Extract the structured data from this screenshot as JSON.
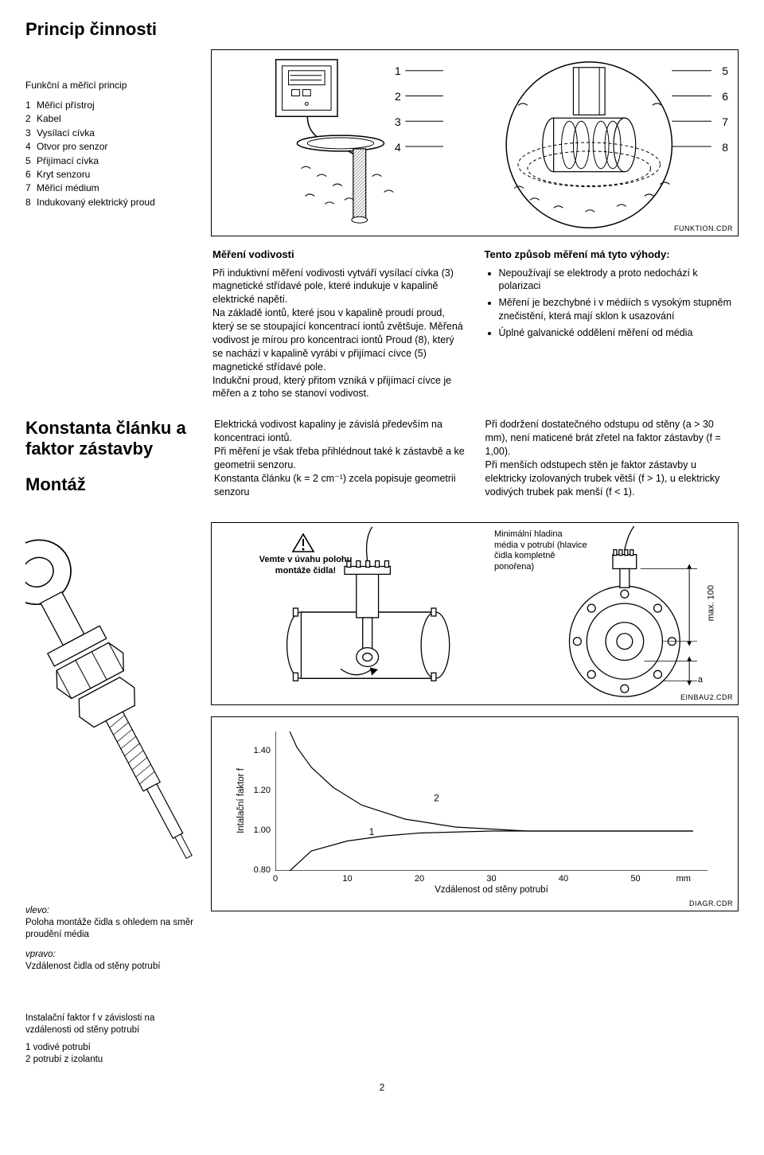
{
  "section1": {
    "title": "Princip činnosti"
  },
  "legend": {
    "subtitle": "Funkční a měřicí princip",
    "items": [
      {
        "n": "1",
        "t": "Měřicí přístroj"
      },
      {
        "n": "2",
        "t": "Kabel"
      },
      {
        "n": "3",
        "t": "Vysílací cívka"
      },
      {
        "n": "4",
        "t": "Otvor pro senzor"
      },
      {
        "n": "5",
        "t": "Přijímací cívka"
      },
      {
        "n": "6",
        "t": "Kryt senzoru"
      },
      {
        "n": "7",
        "t": "Měřicí médium"
      },
      {
        "n": "8",
        "t": "Indukovaný elektrický proud"
      }
    ]
  },
  "fig1": {
    "labels_left": [
      "1",
      "2",
      "3",
      "4"
    ],
    "labels_right": [
      "5",
      "6",
      "7",
      "8"
    ],
    "caption": "FUNKTION.CDR"
  },
  "body1": {
    "heading": "Měření vodivosti",
    "text": "Při induktivní měření vodivosti vytváří vysílací cívka (3) magnetické střídavé pole, které indukuje v kapalině elektrické napětí.\nNa základě iontů, které jsou v kapalině proudí proud, který se se stoupající koncentrací iontů zvětšuje. Měřená vodivost je mírou pro koncentraci iontů Proud (8), který se nachází v kapalině vyrábi v přijímací cívce (5) magnetické střídavé pole.\nIndukční proud, který přitom vzniká v přijímací cívce je měřen a z toho se stanoví vodivost."
  },
  "body2": {
    "heading": "Tento způsob měření má tyto výhody:",
    "bullets": [
      "Nepoužívají se elektrody a proto nedochází k polarizaci",
      "Měření je bezchybné i v médiích s vysokým stupněm znečistění, která mají sklon k usazování",
      "Úplné galvanické oddělení měření od média"
    ]
  },
  "section2": {
    "title": "Konstanta článku a faktor zástavby"
  },
  "body3": {
    "text": "Elektrická vodivost kapaliny je závislá především na koncentraci iontů.\nPři měření je však třeba přihlédnout také k zástavbě a ke geometrii senzoru.\nKonstanta článku (k = 2 cm⁻¹) zcela popisuje geometrii senzoru"
  },
  "body4": {
    "text": "Při dodržení dostatečného odstupu od stěny (a > 30 mm), není maticené brát zřetel na faktor zástavby (f = 1,00).\nPři menších odstupech stěn je faktor zástavby u elektricky izolovaných trubek větší (f > 1), u elektricky vodivých trubek pak menší (f < 1)."
  },
  "section3": {
    "title": "Montáž"
  },
  "sensor_captions": {
    "left_heading": "vlevo:",
    "left_text": "Poloha montáže čidla s ohledem na směr proudění média",
    "right_heading": "vpravo:",
    "right_text": "Vzdálenost čidla od stěny potrubí"
  },
  "montaz_fig": {
    "warn": "Vemte v úvahu polohu montáže čidla!",
    "min_level": "Minimální hladina média v potrubí (hlavice čidla kompletně ponořena)",
    "max100": "max. 100",
    "a_lbl": "a",
    "caption": "EINBAU2.CDR"
  },
  "install_caption": {
    "text": "Instalační faktor f v závislosti na vzdálenosti od stěny potrubí",
    "items": [
      {
        "n": "1",
        "t": "vodivé potrubí"
      },
      {
        "n": "2",
        "t": "potrubí z izolantu"
      }
    ]
  },
  "chart": {
    "type": "line",
    "ylabel": "Intalační faktor f",
    "xlabel": "Vzdálenost od stěny potrubí",
    "xunit": "mm",
    "xlim": [
      0,
      60
    ],
    "ylim": [
      0.8,
      1.5
    ],
    "yticks": [
      0.8,
      1.0,
      1.2,
      1.4
    ],
    "xticks": [
      0,
      10,
      20,
      30,
      40,
      50
    ],
    "grid_color": "#e5e5e5",
    "axis_color": "#000000",
    "bg": "#ffffff",
    "series": [
      {
        "name": "1",
        "label": "1",
        "color": "#000",
        "width": 1.2,
        "points": [
          [
            2,
            0.8
          ],
          [
            5,
            0.9
          ],
          [
            10,
            0.95
          ],
          [
            15,
            0.975
          ],
          [
            20,
            0.99
          ],
          [
            30,
            1.0
          ],
          [
            40,
            1.0
          ],
          [
            50,
            1.0
          ],
          [
            58,
            1.0
          ]
        ],
        "label_pos": [
          13,
          0.98
        ]
      },
      {
        "name": "2",
        "label": "2",
        "color": "#000",
        "width": 1.2,
        "points": [
          [
            2,
            1.5
          ],
          [
            3,
            1.42
          ],
          [
            5,
            1.32
          ],
          [
            8,
            1.22
          ],
          [
            12,
            1.13
          ],
          [
            18,
            1.06
          ],
          [
            25,
            1.02
          ],
          [
            35,
            1.0
          ],
          [
            50,
            1.0
          ],
          [
            58,
            1.0
          ]
        ],
        "label_pos": [
          22,
          1.15
        ]
      }
    ],
    "caption": "DIAGR.CDR"
  },
  "page_number": "2"
}
